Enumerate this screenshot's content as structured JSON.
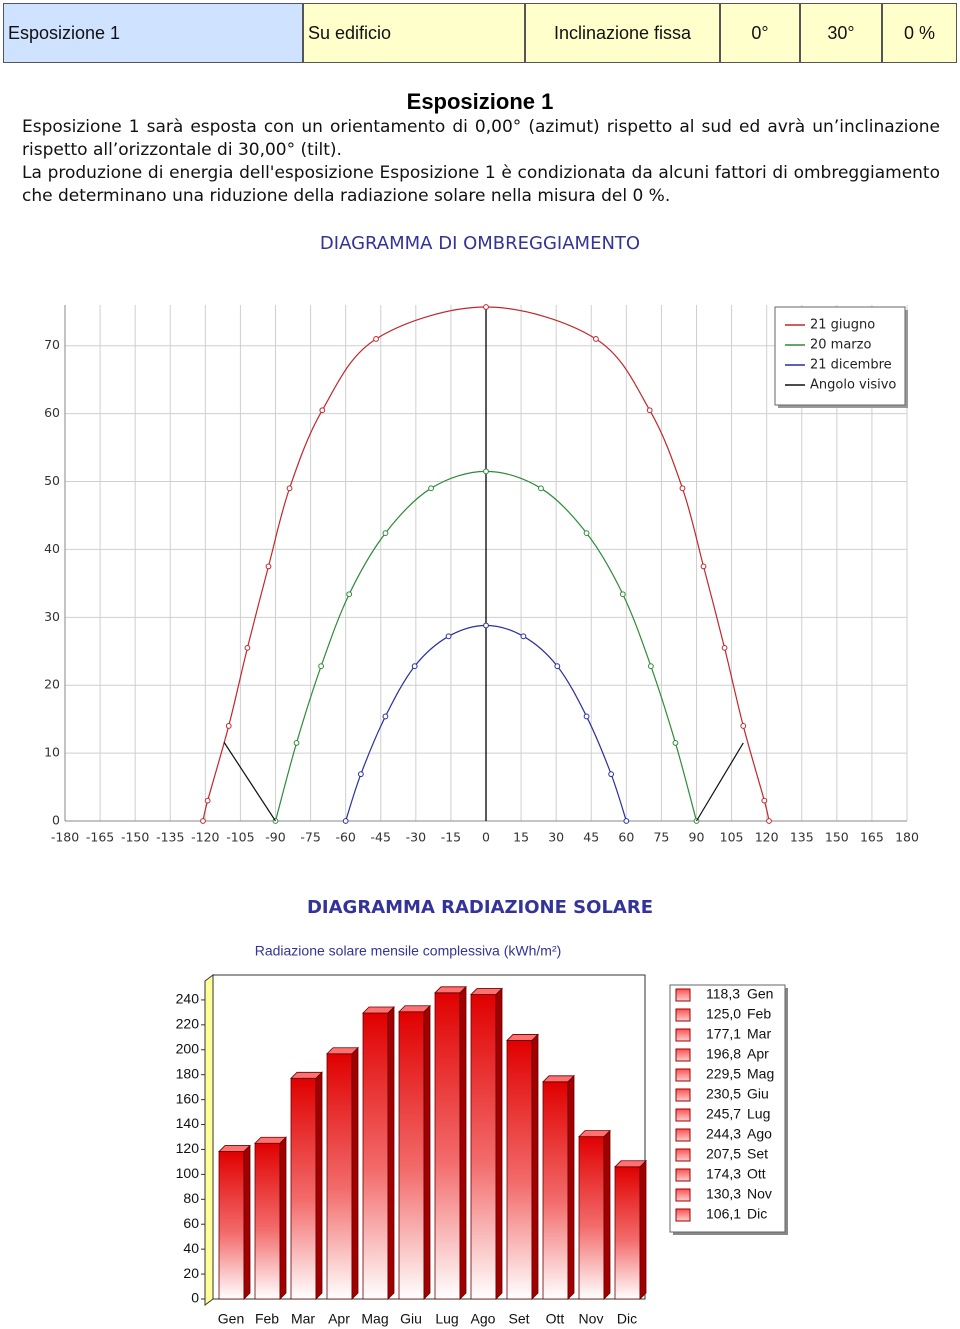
{
  "header": {
    "cells": [
      "Esposizione 1",
      "Su edificio",
      "Inclinazione fissa",
      "0°",
      "30°",
      "0 %"
    ]
  },
  "section": {
    "title": "Esposizione 1",
    "paragraphs": [
      "Esposizione 1 sarà esposta con un orientamento di 0,00° (azimut) rispetto al sud ed avrà un’inclinazione rispetto all’orizzontale di 30,00° (tilt).",
      "La produzione di energia dell'esposizione Esposizione 1 è condizionata da alcuni fattori di ombreggiamento che determinano una riduzione della radiazione solare nella misura del 0 %."
    ]
  },
  "chart_data": [
    {
      "type": "line",
      "title": "DIAGRAMMA DI OMBREGGIAMENTO",
      "xlim": [
        -180,
        180
      ],
      "ylim": [
        0,
        76
      ],
      "xticks": [
        -180,
        -165,
        -150,
        -135,
        -120,
        -105,
        -90,
        -75,
        -60,
        -45,
        -30,
        -15,
        0,
        15,
        30,
        45,
        60,
        75,
        90,
        105,
        120,
        135,
        150,
        165,
        180
      ],
      "yticks": [
        0,
        10,
        20,
        30,
        40,
        50,
        60,
        70
      ],
      "grid": true,
      "legend": "top-right",
      "series": [
        {
          "name": "21 giugno",
          "color": "#c0282d",
          "marker": true,
          "x": [
            -121,
            -119,
            -110,
            -102,
            -93,
            -84,
            -70,
            -47,
            0,
            47,
            70,
            84,
            93,
            102,
            110,
            119,
            121
          ],
          "values": [
            0,
            3,
            14,
            25.5,
            37.5,
            49,
            60.5,
            71,
            75.7,
            71,
            60.5,
            49,
            37.5,
            25.5,
            14,
            3,
            0
          ]
        },
        {
          "name": "20 marzo",
          "color": "#2e8b3a",
          "marker": true,
          "x": [
            -90,
            -81,
            -70.5,
            -58.5,
            -43,
            -23.5,
            0,
            23.5,
            43,
            58.5,
            70.5,
            81,
            90
          ],
          "values": [
            0,
            11.5,
            22.8,
            33.4,
            42.4,
            49,
            51.5,
            49,
            42.4,
            33.4,
            22.8,
            11.5,
            0
          ]
        },
        {
          "name": "21 dicembre",
          "color": "#2a2f9c",
          "marker": true,
          "x": [
            -60,
            -53.5,
            -43,
            -30.5,
            -16,
            0,
            16,
            30.5,
            43,
            53.5,
            60
          ],
          "values": [
            0,
            6.9,
            15.4,
            22.8,
            27.2,
            28.8,
            27.2,
            22.8,
            15.4,
            6.9,
            0
          ]
        },
        {
          "name": "Angolo visivo",
          "color": "#111111",
          "marker": false,
          "x": [
            -112,
            -90,
            null,
            90,
            110
          ],
          "values": [
            11.6,
            0,
            null,
            0,
            11.5
          ]
        }
      ]
    },
    {
      "type": "bar",
      "title": "DIAGRAMMA RADIAZIONE SOLARE",
      "subtitle": "Radiazione solare mensile complessiva (kWh/m²)",
      "categories": [
        "Gen",
        "Feb",
        "Mar",
        "Apr",
        "Mag",
        "Giu",
        "Lug",
        "Ago",
        "Set",
        "Ott",
        "Nov",
        "Dic"
      ],
      "values": [
        118.3,
        125.0,
        177.1,
        196.8,
        229.5,
        230.5,
        245.7,
        244.3,
        207.5,
        174.3,
        130.3,
        106.1
      ],
      "value_labels": [
        "118,3",
        "125,0",
        "177,1",
        "196,8",
        "229,5",
        "230,5",
        "245,7",
        "244,3",
        "207,5",
        "174,3",
        "130,3",
        "106,1"
      ],
      "color": "#e00000",
      "ylim": [
        0,
        260
      ],
      "yticks": [
        0,
        20,
        40,
        60,
        80,
        100,
        120,
        140,
        160,
        180,
        200,
        220,
        240
      ],
      "legend": "right"
    }
  ]
}
